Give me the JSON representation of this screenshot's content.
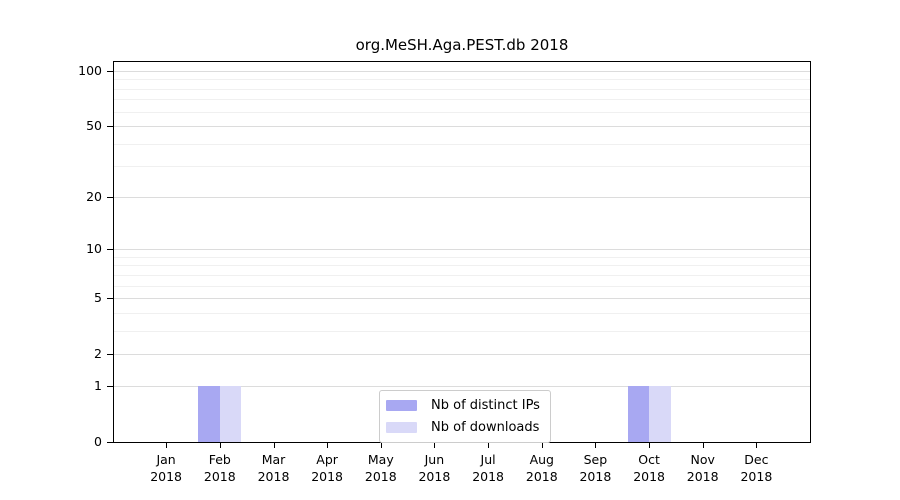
{
  "chart_data": {
    "type": "bar",
    "title": "org.MeSH.Aga.PEST.db 2018",
    "categories": [
      "Jan",
      "Feb",
      "Mar",
      "Apr",
      "May",
      "Jun",
      "Jul",
      "Aug",
      "Sep",
      "Oct",
      "Nov",
      "Dec"
    ],
    "category_year": "2018",
    "series": [
      {
        "name": "Nb of distinct IPs",
        "color": "#a8a8f2",
        "values": [
          0,
          1,
          0,
          0,
          0,
          0,
          0,
          0,
          0,
          1,
          0,
          0
        ]
      },
      {
        "name": "Nb of downloads",
        "color": "#d9d9f8",
        "values": [
          0,
          1,
          0,
          0,
          0,
          0,
          0,
          0,
          0,
          1,
          0,
          0
        ]
      }
    ],
    "y_axis": {
      "scale": "log10(1+v)",
      "ticks": [
        0,
        1,
        2,
        5,
        10,
        20,
        50,
        100
      ],
      "minor_gridlines": [
        3,
        4,
        6,
        7,
        8,
        9,
        30,
        40,
        60,
        70,
        80,
        90
      ],
      "ylim": [
        0,
        112
      ]
    },
    "xlabel": "",
    "ylabel": "",
    "grid": true,
    "legend_position": "lower center",
    "colors": {
      "major_grid": "#dcdcdc",
      "minor_grid": "#f0f0f0",
      "axis": "#000000",
      "background": "#ffffff"
    }
  }
}
